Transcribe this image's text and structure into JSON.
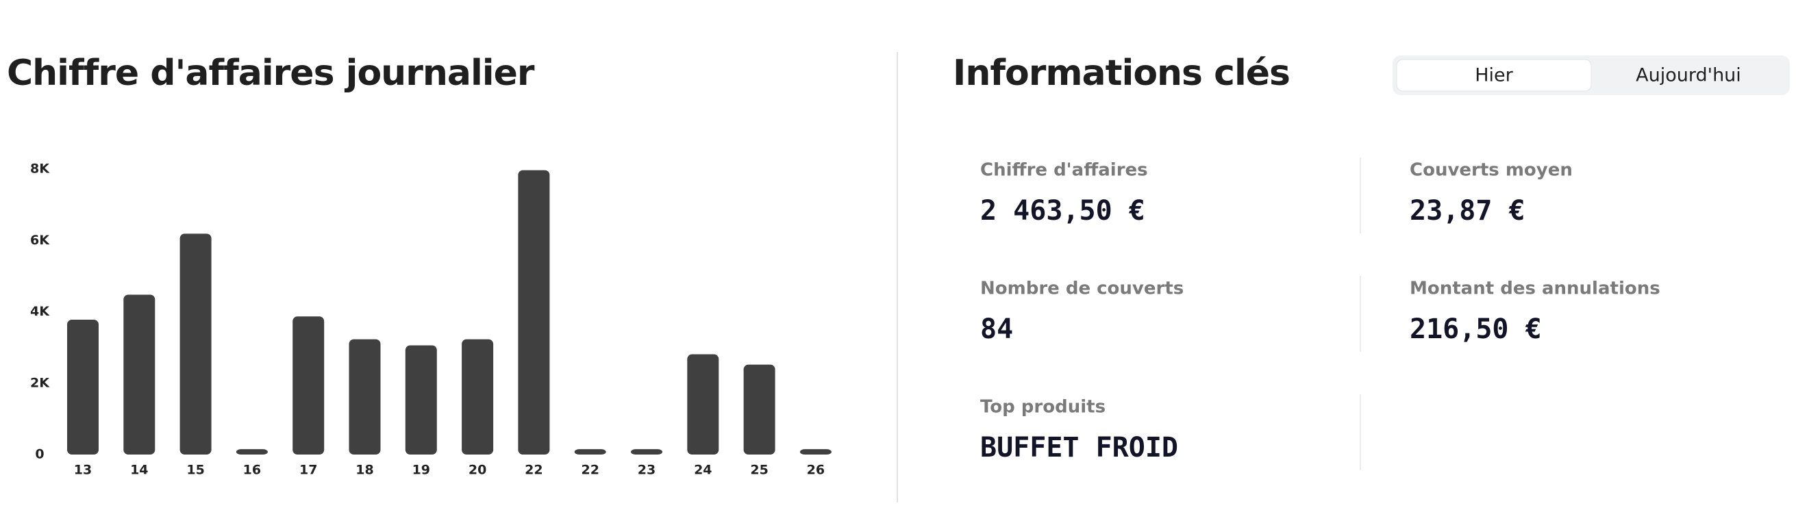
{
  "chart_data": {
    "type": "bar",
    "title": "Chiffre d'affaires journalier",
    "categories": [
      "13",
      "14",
      "15",
      "16",
      "17",
      "18",
      "19",
      "20",
      "22",
      "22",
      "23",
      "24",
      "25",
      "26"
    ],
    "values": [
      3780,
      4480,
      6190,
      150,
      3870,
      3230,
      3060,
      3230,
      7970,
      150,
      150,
      2810,
      2520,
      150
    ],
    "color": "#404040",
    "ylim": [
      0,
      8000
    ],
    "yticks": [
      0,
      {
        "value": 2000,
        "label": "2K"
      },
      {
        "value": 4000,
        "label": "4K"
      },
      {
        "value": 6000,
        "label": "6K"
      },
      {
        "value": 8000,
        "label": "8K"
      }
    ],
    "grid": false
  },
  "info": {
    "title": "Informations clés",
    "tabs": [
      "Hier",
      "Aujourd'hui"
    ],
    "items": [
      {
        "label": "Chiffre d'affaires",
        "value": "2 463,50 €"
      },
      {
        "label": "Couverts moyen",
        "value": "23,87 €"
      },
      {
        "label": "Nombre de couverts",
        "value": "84"
      },
      {
        "label": "Montant des annulations",
        "value": "216,50 €"
      },
      {
        "label": "Top produits",
        "value": "BUFFET FROID"
      }
    ]
  }
}
